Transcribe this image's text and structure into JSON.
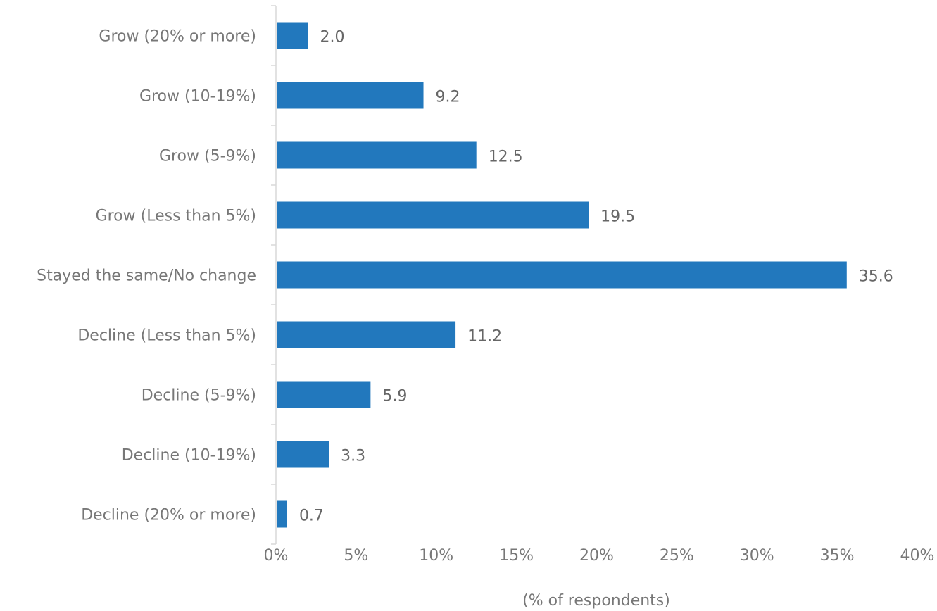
{
  "chart_data": {
    "type": "bar",
    "orientation": "horizontal",
    "categories": [
      "Grow (20% or more)",
      "Grow (10-19%)",
      "Grow (5-9%)",
      "Grow (Less than 5%)",
      "Stayed the same/No change",
      "Decline (Less than 5%)",
      "Decline (5-9%)",
      "Decline (10-19%)",
      "Decline (20% or more)"
    ],
    "values": [
      2.0,
      9.2,
      12.5,
      19.5,
      35.6,
      11.2,
      5.9,
      3.3,
      0.7
    ],
    "value_labels": [
      "2.0",
      "9.2",
      "12.5",
      "19.5",
      "35.6",
      "11.2",
      "5.9",
      "3.3",
      "0.7"
    ],
    "title": "",
    "xlabel": "(% of respondents)",
    "ylabel": "",
    "xlim": [
      0,
      40
    ],
    "x_ticks": [
      0,
      5,
      10,
      15,
      20,
      25,
      30,
      35,
      40
    ],
    "x_tick_labels": [
      "0%",
      "5%",
      "10%",
      "15%",
      "20%",
      "25%",
      "30%",
      "35%",
      "40%"
    ],
    "grid": false,
    "legend": "none",
    "colors": {
      "bar": "#2278bd",
      "axis": "#d9d9d9",
      "text": "#777777"
    }
  }
}
